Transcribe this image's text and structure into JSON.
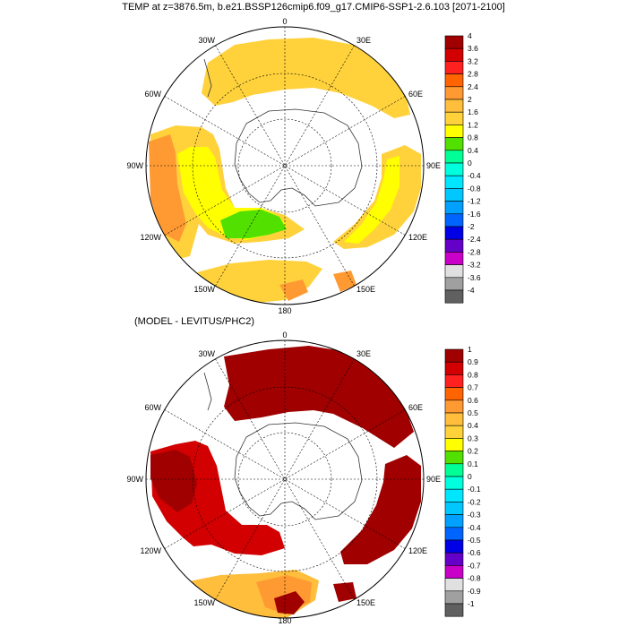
{
  "title": "TEMP at z=3876.5m, b.e21.BSSP126cmip6.f09_g17.CMIP6-SSP1-2.6.103 [2071-2100]",
  "subtitle": "(MODEL - LEVITUS/PHC2)",
  "longitude_labels": {
    "top": "0",
    "top_left": "30W",
    "top_right": "30E",
    "upper_left": "60W",
    "upper_right": "60E",
    "left": "90W",
    "right": "90E",
    "lower_left": "120W",
    "lower_right": "120E",
    "bottom_left": "150W",
    "bottom_right": "150E",
    "bottom": "180"
  },
  "colorbar_top": {
    "labels": [
      "4",
      "3.6",
      "3.2",
      "2.8",
      "2.4",
      "2",
      "1.6",
      "1.2",
      "0.8",
      "0.4",
      "0",
      "-0.4",
      "-0.8",
      "-1.2",
      "-1.6",
      "-2",
      "-2.4",
      "-2.8",
      "-3.2",
      "-3.6",
      "-4"
    ],
    "colors": [
      "#a00000",
      "#d20000",
      "#ff2020",
      "#ff6400",
      "#ff9a33",
      "#ffbe3c",
      "#ffd23c",
      "#ffff00",
      "#52e000",
      "#00ff96",
      "#00ffdc",
      "#00e6ff",
      "#00c8ff",
      "#00a0ff",
      "#0064ff",
      "#0000e6",
      "#6400c8",
      "#c800c8",
      "#e0e0e0",
      "#a0a0a0",
      "#606060"
    ]
  },
  "colorbar_bottom": {
    "labels": [
      "1",
      "0.9",
      "0.8",
      "0.7",
      "0.6",
      "0.5",
      "0.4",
      "0.3",
      "0.2",
      "0.1",
      "0",
      "-0.1",
      "-0.2",
      "-0.3",
      "-0.4",
      "-0.5",
      "-0.6",
      "-0.7",
      "-0.8",
      "-0.9",
      "-1"
    ],
    "colors": [
      "#a00000",
      "#d20000",
      "#ff2020",
      "#ff6400",
      "#ff9a33",
      "#ffbe3c",
      "#ffd23c",
      "#ffff00",
      "#52e000",
      "#00ff96",
      "#00ffdc",
      "#00e6ff",
      "#00c8ff",
      "#00a0ff",
      "#0064ff",
      "#0000e6",
      "#6400c8",
      "#c800c8",
      "#e0e0e0",
      "#a0a0a0",
      "#606060"
    ]
  }
}
